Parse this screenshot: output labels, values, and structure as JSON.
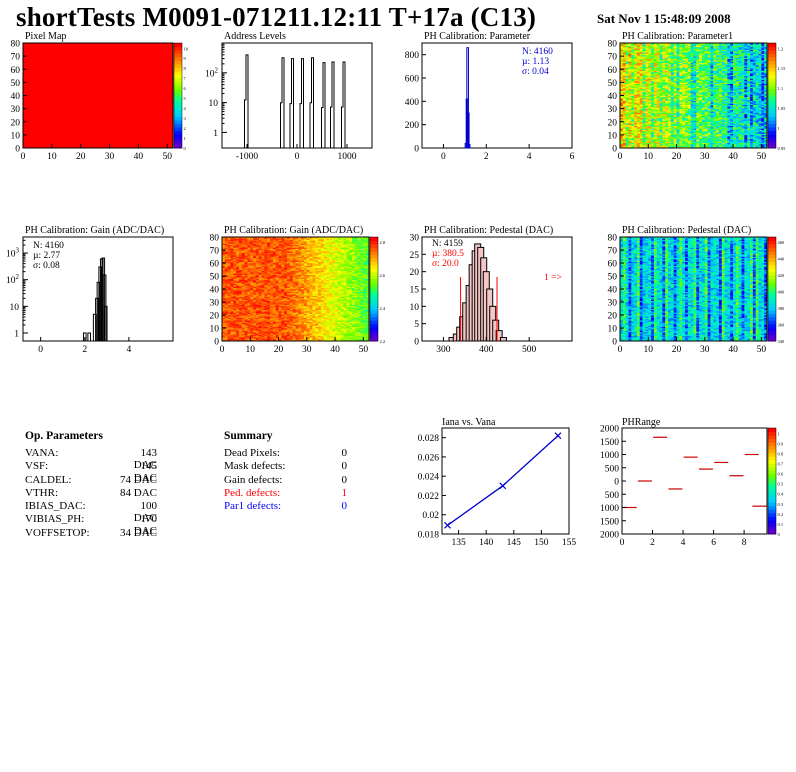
{
  "title": "shortTests M0091-071211.12:11 T+17a (C13)",
  "date": "Sat Nov  1 15:48:09 2008",
  "panels": {
    "pixel_map": {
      "title": "Pixel Map"
    },
    "address_levels": {
      "title": "Address Levels"
    },
    "ph_param": {
      "title": "PH Calibration: Parameter"
    },
    "ph_param1": {
      "title": "PH Calibration: Parameter1"
    },
    "gain_hist": {
      "title": "PH Calibration: Gain (ADC/DAC)"
    },
    "gain_map": {
      "title": "PH Calibration: Gain (ADC/DAC)"
    },
    "ped_hist": {
      "title": "PH Calibration: Pedestal (DAC)"
    },
    "ped_map": {
      "title": "PH Calibration: Pedestal (DAC)"
    },
    "iana": {
      "title": "Iana vs. Vana"
    },
    "phrange": {
      "title": "PHRange"
    }
  },
  "op_params": {
    "title": "Op. Parameters",
    "rows": [
      {
        "name": "VANA:",
        "value": "143 DAC"
      },
      {
        "name": "VSF:",
        "value": "145 DAC"
      },
      {
        "name": "CALDEL:",
        "value": "74 DAC"
      },
      {
        "name": "VTHR:",
        "value": "84 DAC"
      },
      {
        "name": "IBIAS_DAC:",
        "value": "100 DAC"
      },
      {
        "name": "VIBIAS_PH:",
        "value": "170 DAC"
      },
      {
        "name": "VOFFSETOP:",
        "value": "34 DAC"
      }
    ]
  },
  "summary": {
    "title": "Summary",
    "rows": [
      {
        "name": "Dead Pixels:",
        "value": "0",
        "color": "#000000"
      },
      {
        "name": "Mask defects:",
        "value": "0",
        "color": "#000000"
      },
      {
        "name": "Gain defects:",
        "value": "0",
        "color": "#000000"
      },
      {
        "name": "Ped. defects:",
        "value": "1",
        "color": "#ff0000"
      },
      {
        "name": "Par1 defects:",
        "value": "0",
        "color": "#0000ff"
      }
    ]
  },
  "chart_data": [
    {
      "type": "heatmap",
      "id": "pixel_map",
      "title": "Pixel Map",
      "xlim": [
        0,
        52
      ],
      "ylim": [
        0,
        80
      ],
      "x_ticks": [
        0,
        10,
        20,
        30,
        40,
        50
      ],
      "y_ticks": [
        0,
        10,
        20,
        30,
        40,
        50,
        60,
        70,
        80
      ],
      "uniform_value": 10,
      "uniform_color": "#ff0000",
      "z_ticks": [
        "0",
        "1",
        "2",
        "3",
        "4",
        "5",
        "6",
        "7",
        "8",
        "9",
        "10"
      ]
    },
    {
      "type": "bar",
      "id": "address_levels",
      "title": "Address Levels",
      "log_y": true,
      "xlim": [
        -1500,
        1500
      ],
      "ylim": [
        0.3,
        1000
      ],
      "x_ticks": [
        -1000,
        0,
        1000
      ],
      "y_tick_labels": [
        "1",
        "10",
        "10^2"
      ],
      "peaks": [
        {
          "x": -1000,
          "y": 400
        },
        {
          "x": -280,
          "y": 320
        },
        {
          "x": -90,
          "y": 300
        },
        {
          "x": 110,
          "y": 300
        },
        {
          "x": 310,
          "y": 320
        },
        {
          "x": 540,
          "y": 220
        },
        {
          "x": 720,
          "y": 230
        },
        {
          "x": 940,
          "y": 230
        }
      ]
    },
    {
      "type": "bar",
      "id": "ph_param",
      "title": "PH Calibration: Parameter",
      "xlim": [
        -1,
        6
      ],
      "ylim": [
        0,
        900
      ],
      "x_ticks": [
        0,
        2,
        4,
        6
      ],
      "y_ticks": [
        0,
        200,
        400,
        600,
        800
      ],
      "stats": [
        "N: 4160",
        "µ: 1.13",
        "σ: 0.04"
      ],
      "bins": [
        {
          "x": 1.05,
          "y": 40
        },
        {
          "x": 1.1,
          "y": 420
        },
        {
          "x": 1.13,
          "y": 860
        },
        {
          "x": 1.16,
          "y": 300
        },
        {
          "x": 1.2,
          "y": 30
        }
      ]
    },
    {
      "type": "heatmap",
      "id": "ph_param1",
      "title": "PH Calibration: Parameter1",
      "xlim": [
        0,
        52
      ],
      "ylim": [
        0,
        80
      ],
      "x_ticks": [
        0,
        10,
        20,
        30,
        40,
        50
      ],
      "y_ticks": [
        0,
        10,
        20,
        30,
        40,
        50,
        60,
        70,
        80
      ],
      "z_ticks": [
        "0.95",
        "1",
        "1.05",
        "1.1",
        "1.15",
        "1.2"
      ],
      "zlim": [
        0.95,
        1.25
      ]
    },
    {
      "type": "bar",
      "id": "gain_hist",
      "title": "PH Calibration: Gain (ADC/DAC)",
      "log_y": true,
      "xlim": [
        -0.8,
        6
      ],
      "ylim": [
        0.5,
        4000
      ],
      "x_ticks": [
        0,
        2,
        4
      ],
      "y_tick_labels": [
        "1",
        "10",
        "10^2",
        "10^3"
      ],
      "stats": [
        "N: 4160",
        "µ: 2.77",
        "σ: 0.08"
      ],
      "bins": [
        {
          "x": 2.0,
          "y": 1
        },
        {
          "x": 2.2,
          "y": 1
        },
        {
          "x": 2.45,
          "y": 5
        },
        {
          "x": 2.55,
          "y": 20
        },
        {
          "x": 2.62,
          "y": 80
        },
        {
          "x": 2.7,
          "y": 300
        },
        {
          "x": 2.77,
          "y": 600
        },
        {
          "x": 2.84,
          "y": 650
        },
        {
          "x": 2.9,
          "y": 150
        },
        {
          "x": 2.95,
          "y": 10
        }
      ]
    },
    {
      "type": "heatmap",
      "id": "gain_map",
      "title": "PH Calibration: Gain (ADC/DAC)",
      "xlim": [
        0,
        52
      ],
      "ylim": [
        0,
        80
      ],
      "x_ticks": [
        0,
        10,
        20,
        30,
        40,
        50
      ],
      "y_ticks": [
        0,
        10,
        20,
        30,
        40,
        50,
        60,
        70,
        80
      ],
      "z_ticks": [
        "2.2",
        "2.4",
        "2.6",
        "2.8"
      ],
      "zlim": [
        2.0,
        2.9
      ]
    },
    {
      "type": "bar",
      "id": "ped_hist",
      "title": "PH Calibration: Pedestal (DAC)",
      "xlim": [
        250,
        600
      ],
      "ylim": [
        0,
        30
      ],
      "x_ticks": [
        300,
        400,
        500
      ],
      "y_ticks": [
        0,
        5,
        10,
        15,
        20,
        25,
        30
      ],
      "stats": [
        "N: 4159",
        "µ: 380.5",
        "σ: 20.0"
      ],
      "annotation": "1 =>",
      "cut_lines": [
        340,
        425
      ],
      "bins": [
        {
          "x": 320,
          "y": 1
        },
        {
          "x": 330,
          "y": 2
        },
        {
          "x": 338,
          "y": 4
        },
        {
          "x": 345,
          "y": 7
        },
        {
          "x": 352,
          "y": 11
        },
        {
          "x": 360,
          "y": 16
        },
        {
          "x": 367,
          "y": 22
        },
        {
          "x": 374,
          "y": 26
        },
        {
          "x": 380,
          "y": 28
        },
        {
          "x": 387,
          "y": 27
        },
        {
          "x": 394,
          "y": 24
        },
        {
          "x": 400,
          "y": 20
        },
        {
          "x": 408,
          "y": 15
        },
        {
          "x": 415,
          "y": 10
        },
        {
          "x": 422,
          "y": 6
        },
        {
          "x": 430,
          "y": 3
        },
        {
          "x": 440,
          "y": 1
        }
      ]
    },
    {
      "type": "heatmap",
      "id": "ped_map",
      "title": "PH Calibration: Pedestal (DAC)",
      "xlim": [
        0,
        52
      ],
      "ylim": [
        0,
        80
      ],
      "x_ticks": [
        0,
        10,
        20,
        30,
        40,
        50
      ],
      "y_ticks": [
        0,
        10,
        20,
        30,
        40,
        50,
        60,
        70,
        80
      ],
      "z_ticks": [
        "340",
        "360",
        "380",
        "400",
        "420",
        "440",
        "460"
      ],
      "zlim": [
        330,
        470
      ]
    },
    {
      "type": "line",
      "id": "iana",
      "title": "Iana vs. Vana",
      "xlim": [
        132,
        155
      ],
      "ylim": [
        0.018,
        0.029
      ],
      "x_ticks": [
        135,
        140,
        145,
        150,
        155
      ],
      "y_ticks": [
        0.018,
        0.02,
        0.022,
        0.024,
        0.026,
        0.028
      ],
      "x": [
        133,
        143,
        153
      ],
      "y": [
        0.0189,
        0.023,
        0.0282
      ]
    },
    {
      "type": "scatter",
      "id": "phrange",
      "title": "PHRange",
      "xlim": [
        0,
        9.5
      ],
      "ylim": [
        -2000,
        2000
      ],
      "x_ticks": [
        0,
        2,
        4,
        6,
        8
      ],
      "y_ticks": [
        -2000,
        -1500,
        -1000,
        -500,
        0,
        500,
        1000,
        1500,
        2000
      ],
      "y_tick_labels": [
        "2000",
        "1500",
        "1000",
        "500",
        "0",
        "500",
        "1000",
        "1500",
        "2000"
      ],
      "z_ticks": [
        "0",
        "0.1",
        "0.2",
        "0.3",
        "0.4",
        "0.5",
        "0.6",
        "0.7",
        "0.8",
        "0.9",
        "1"
      ],
      "segments": [
        {
          "x": 0.5,
          "y": -1000
        },
        {
          "x": 1.5,
          "y": 0
        },
        {
          "x": 2.5,
          "y": 1650
        },
        {
          "x": 3.5,
          "y": -300
        },
        {
          "x": 4.5,
          "y": 900
        },
        {
          "x": 5.5,
          "y": 450
        },
        {
          "x": 6.5,
          "y": 700
        },
        {
          "x": 7.5,
          "y": 200
        },
        {
          "x": 8.5,
          "y": 1000
        },
        {
          "x": 9.0,
          "y": -950
        }
      ]
    }
  ]
}
